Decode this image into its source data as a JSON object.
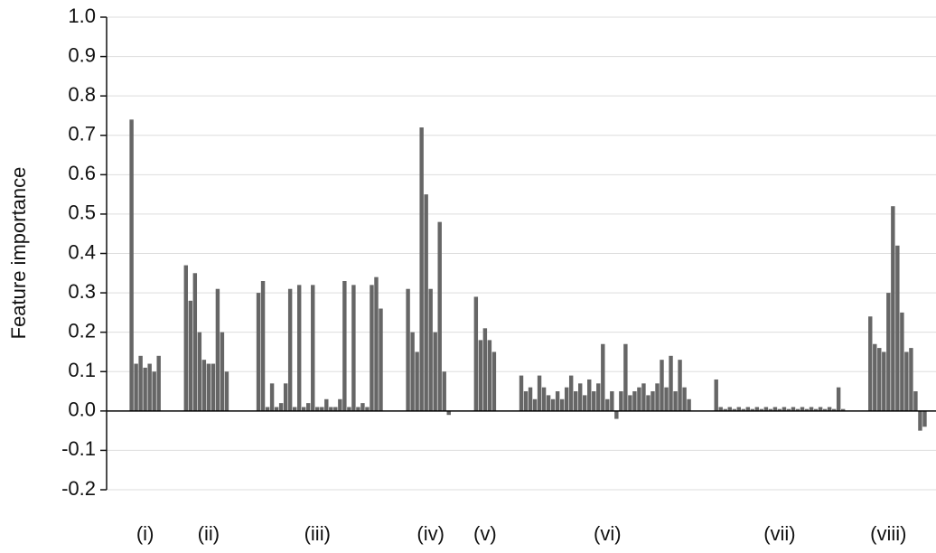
{
  "chart_data": {
    "type": "bar",
    "y_label": "Feature importance",
    "color": "#666666",
    "grid": true,
    "ylim": [
      -0.2,
      1.0
    ],
    "yticks": [
      {
        "value": 1.0,
        "label": "1.0"
      },
      {
        "value": 0.9,
        "label": "0.9"
      },
      {
        "value": 0.8,
        "label": "0.8"
      },
      {
        "value": 0.7,
        "label": "0.7"
      },
      {
        "value": 0.6,
        "label": "0.6"
      },
      {
        "value": 0.5,
        "label": "0.5"
      },
      {
        "value": 0.4,
        "label": "0.4"
      },
      {
        "value": 0.3,
        "label": "0.3"
      },
      {
        "value": 0.2,
        "label": "0.2"
      },
      {
        "value": 0.1,
        "label": "0.1"
      },
      {
        "value": 0,
        "label": "0.0"
      },
      {
        "value": -0.1,
        "label": "-0.1"
      },
      {
        "value": -0.2,
        "label": "-0.2"
      }
    ],
    "categories": [
      null,
      null,
      null,
      null,
      null,
      null,
      null,
      null,
      "(i)",
      null,
      null,
      null,
      null,
      null,
      null,
      null,
      null,
      null,
      null,
      null,
      null,
      null,
      "(ii)",
      null,
      null,
      null,
      null,
      null,
      null,
      null,
      null,
      null,
      null,
      null,
      null,
      null,
      null,
      null,
      null,
      null,
      null,
      null,
      null,
      null,
      null,
      null,
      "(iii)",
      null,
      null,
      null,
      null,
      null,
      null,
      null,
      null,
      null,
      null,
      null,
      null,
      null,
      null,
      null,
      null,
      null,
      null,
      null,
      null,
      null,
      null,
      null,
      null,
      "(iv)",
      null,
      null,
      null,
      null,
      null,
      null,
      null,
      null,
      null,
      null,
      null,
      "(v)",
      null,
      null,
      null,
      null,
      null,
      null,
      null,
      null,
      null,
      null,
      null,
      null,
      null,
      null,
      null,
      null,
      null,
      null,
      null,
      null,
      null,
      null,
      null,
      null,
      null,
      null,
      "(vi)",
      null,
      null,
      null,
      null,
      null,
      null,
      null,
      null,
      null,
      null,
      null,
      null,
      null,
      null,
      null,
      null,
      null,
      null,
      null,
      null,
      null,
      null,
      null,
      null,
      null,
      null,
      null,
      null,
      null,
      null,
      null,
      null,
      null,
      null,
      null,
      null,
      null,
      "(vii)",
      null,
      null,
      null,
      null,
      null,
      null,
      null,
      null,
      null,
      null,
      null,
      null,
      null,
      null,
      null,
      null,
      null,
      null,
      null,
      null,
      null,
      null,
      null,
      "(viii)",
      null,
      null,
      null,
      null,
      null,
      null,
      null,
      null,
      null,
      null
    ],
    "values": [
      null,
      null,
      null,
      null,
      null,
      0.74,
      0.12,
      0.14,
      0.11,
      0.12,
      0.1,
      0.14,
      null,
      null,
      null,
      null,
      null,
      0.37,
      0.28,
      0.35,
      0.2,
      0.13,
      0.12,
      0.12,
      0.31,
      0.2,
      0.1,
      null,
      null,
      null,
      null,
      null,
      null,
      0.3,
      0.33,
      0.01,
      0.07,
      0.01,
      0.02,
      0.07,
      0.31,
      0.01,
      0.32,
      0.01,
      0.02,
      0.32,
      0.01,
      0.01,
      0.03,
      0.01,
      0.01,
      0.03,
      0.33,
      0.01,
      0.32,
      0.01,
      0.02,
      0.01,
      0.32,
      0.34,
      0.26,
      null,
      null,
      null,
      null,
      null,
      0.31,
      0.2,
      0.15,
      0.72,
      0.55,
      0.31,
      0.2,
      0.48,
      0.1,
      -0.01,
      null,
      null,
      null,
      null,
      null,
      0.29,
      0.18,
      0.21,
      0.18,
      0.15,
      null,
      null,
      null,
      null,
      null,
      0.09,
      0.05,
      0.06,
      0.03,
      0.09,
      0.06,
      0.04,
      0.03,
      0.05,
      0.03,
      0.06,
      0.09,
      0.05,
      0.07,
      0.04,
      0.08,
      0.05,
      0.07,
      0.17,
      0.03,
      0.05,
      -0.02,
      0.05,
      0.17,
      0.04,
      0.05,
      0.06,
      0.07,
      0.04,
      0.05,
      0.07,
      0.13,
      0.06,
      0.14,
      0.05,
      0.13,
      0.06,
      0.03,
      null,
      null,
      null,
      null,
      null,
      0.08,
      0.01,
      0.005,
      0.01,
      0.005,
      0.01,
      0.005,
      0.01,
      0.005,
      0.01,
      0.005,
      0.01,
      0.005,
      0.01,
      0.005,
      0.01,
      0.005,
      0.01,
      0.005,
      0.01,
      0.005,
      0.01,
      0.005,
      0.01,
      0.005,
      0.01,
      0.005,
      0.06,
      0.005,
      null,
      null,
      null,
      null,
      null,
      0.24,
      0.17,
      0.16,
      0.15,
      0.3,
      0.52,
      0.42,
      0.25,
      0.15,
      0.16,
      0.05,
      -0.05,
      -0.04,
      null,
      null
    ]
  }
}
